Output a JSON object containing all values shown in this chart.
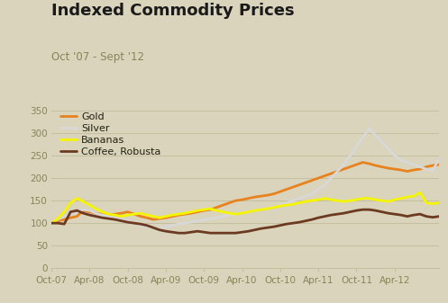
{
  "title": "Indexed Commodity Prices",
  "subtitle": "Oct '07 - Sept '12",
  "background_color": "#d9d4bb",
  "plot_bg_color": "#d9d4bb",
  "grid_color": "#c4bf9e",
  "title_color": "#1a1a1a",
  "subtitle_color": "#8a845a",
  "ylim": [
    0,
    360
  ],
  "yticks": [
    0,
    50,
    100,
    150,
    200,
    250,
    300,
    350
  ],
  "xtick_labels": [
    "Oct-07",
    "Apr-08",
    "Oct-08",
    "Apr-09",
    "Oct-09",
    "Apr-10",
    "Oct-10",
    "Apr-11",
    "Oct-11",
    "Apr-12"
  ],
  "series": {
    "Gold": {
      "color": "#e8821e",
      "linewidth": 2.0,
      "values": [
        100,
        105,
        108,
        112,
        115,
        128,
        125,
        122,
        120,
        118,
        120,
        122,
        125,
        120,
        115,
        112,
        108,
        110,
        112,
        115,
        118,
        120,
        122,
        125,
        128,
        130,
        135,
        140,
        145,
        150,
        152,
        155,
        158,
        160,
        162,
        165,
        170,
        175,
        180,
        185,
        190,
        195,
        200,
        205,
        210,
        215,
        220,
        225,
        230,
        235,
        232,
        228,
        225,
        222,
        220,
        218,
        215,
        218,
        220,
        225,
        228,
        230
      ]
    },
    "Silver": {
      "color": "#d8d8d8",
      "linewidth": 2.0,
      "values": [
        100,
        108,
        115,
        120,
        125,
        130,
        128,
        122,
        118,
        115,
        110,
        108,
        105,
        100,
        95,
        92,
        90,
        88,
        92,
        95,
        98,
        100,
        102,
        105,
        108,
        110,
        112,
        115,
        118,
        120,
        122,
        125,
        128,
        130,
        132,
        135,
        140,
        145,
        150,
        155,
        160,
        165,
        175,
        185,
        200,
        215,
        230,
        250,
        270,
        290,
        310,
        295,
        280,
        265,
        250,
        240,
        235,
        230,
        225,
        220,
        215,
        245
      ]
    },
    "Bananas": {
      "color": "#f5f500",
      "linewidth": 2.0,
      "values": [
        100,
        110,
        125,
        145,
        155,
        148,
        140,
        132,
        125,
        120,
        118,
        115,
        118,
        120,
        122,
        118,
        115,
        112,
        115,
        118,
        120,
        122,
        125,
        128,
        130,
        132,
        128,
        125,
        122,
        120,
        122,
        125,
        128,
        130,
        132,
        135,
        138,
        140,
        142,
        145,
        148,
        150,
        152,
        155,
        152,
        150,
        148,
        150,
        152,
        155,
        155,
        152,
        150,
        148,
        152,
        155,
        158,
        160,
        168,
        145,
        143,
        145
      ]
    },
    "Coffee, Robusta": {
      "color": "#6b3a20",
      "linewidth": 2.0,
      "values": [
        100,
        100,
        98,
        125,
        128,
        122,
        118,
        115,
        112,
        110,
        108,
        105,
        102,
        100,
        98,
        95,
        90,
        85,
        82,
        80,
        78,
        78,
        80,
        82,
        80,
        78,
        78,
        78,
        78,
        78,
        80,
        82,
        85,
        88,
        90,
        92,
        95,
        98,
        100,
        102,
        105,
        108,
        112,
        115,
        118,
        120,
        122,
        125,
        128,
        130,
        130,
        128,
        125,
        122,
        120,
        118,
        115,
        118,
        120,
        115,
        113,
        115
      ]
    }
  },
  "legend_order": [
    "Gold",
    "Silver",
    "Bananas",
    "Coffee, Robusta"
  ],
  "n_points": 62,
  "xtick_positions": [
    0,
    6,
    12,
    18,
    24,
    30,
    36,
    42,
    48,
    54
  ]
}
